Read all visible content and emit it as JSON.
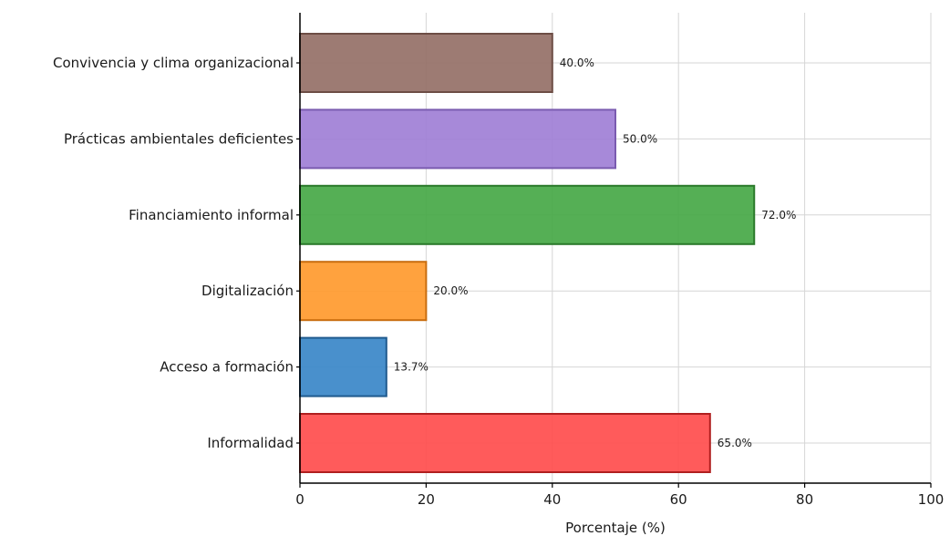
{
  "chart_data": {
    "type": "bar",
    "orientation": "horizontal",
    "categories": [
      "Informalidad",
      "Acceso a formación",
      "Digitalización",
      "Financiamiento informal",
      "Prácticas ambientales deficientes",
      "Convivencia y clima organizacional"
    ],
    "values": [
      65.0,
      13.7,
      20.0,
      72.0,
      50.0,
      40.0
    ],
    "data_labels": [
      "65.0%",
      "13.7%",
      "20.0%",
      "72.0%",
      "50.0%",
      "40.0%"
    ],
    "colors": [
      "#ff4d4d",
      "#3a87c8",
      "#ff9a2e",
      "#46a846",
      "#a07fd6",
      "#957067"
    ],
    "edge_colors": [
      "#b01f1f",
      "#1f5a8e",
      "#c96e10",
      "#2b7a2b",
      "#7a5bb0",
      "#6d4d45"
    ],
    "xlabel": "Porcentaje (%)",
    "ylabel": "",
    "title": "",
    "xlim": [
      0,
      100
    ],
    "xticks": [
      0,
      20,
      40,
      60,
      80,
      100
    ],
    "xtick_labels": [
      "0",
      "20",
      "40",
      "60",
      "80",
      "100"
    ],
    "grid": true
  }
}
